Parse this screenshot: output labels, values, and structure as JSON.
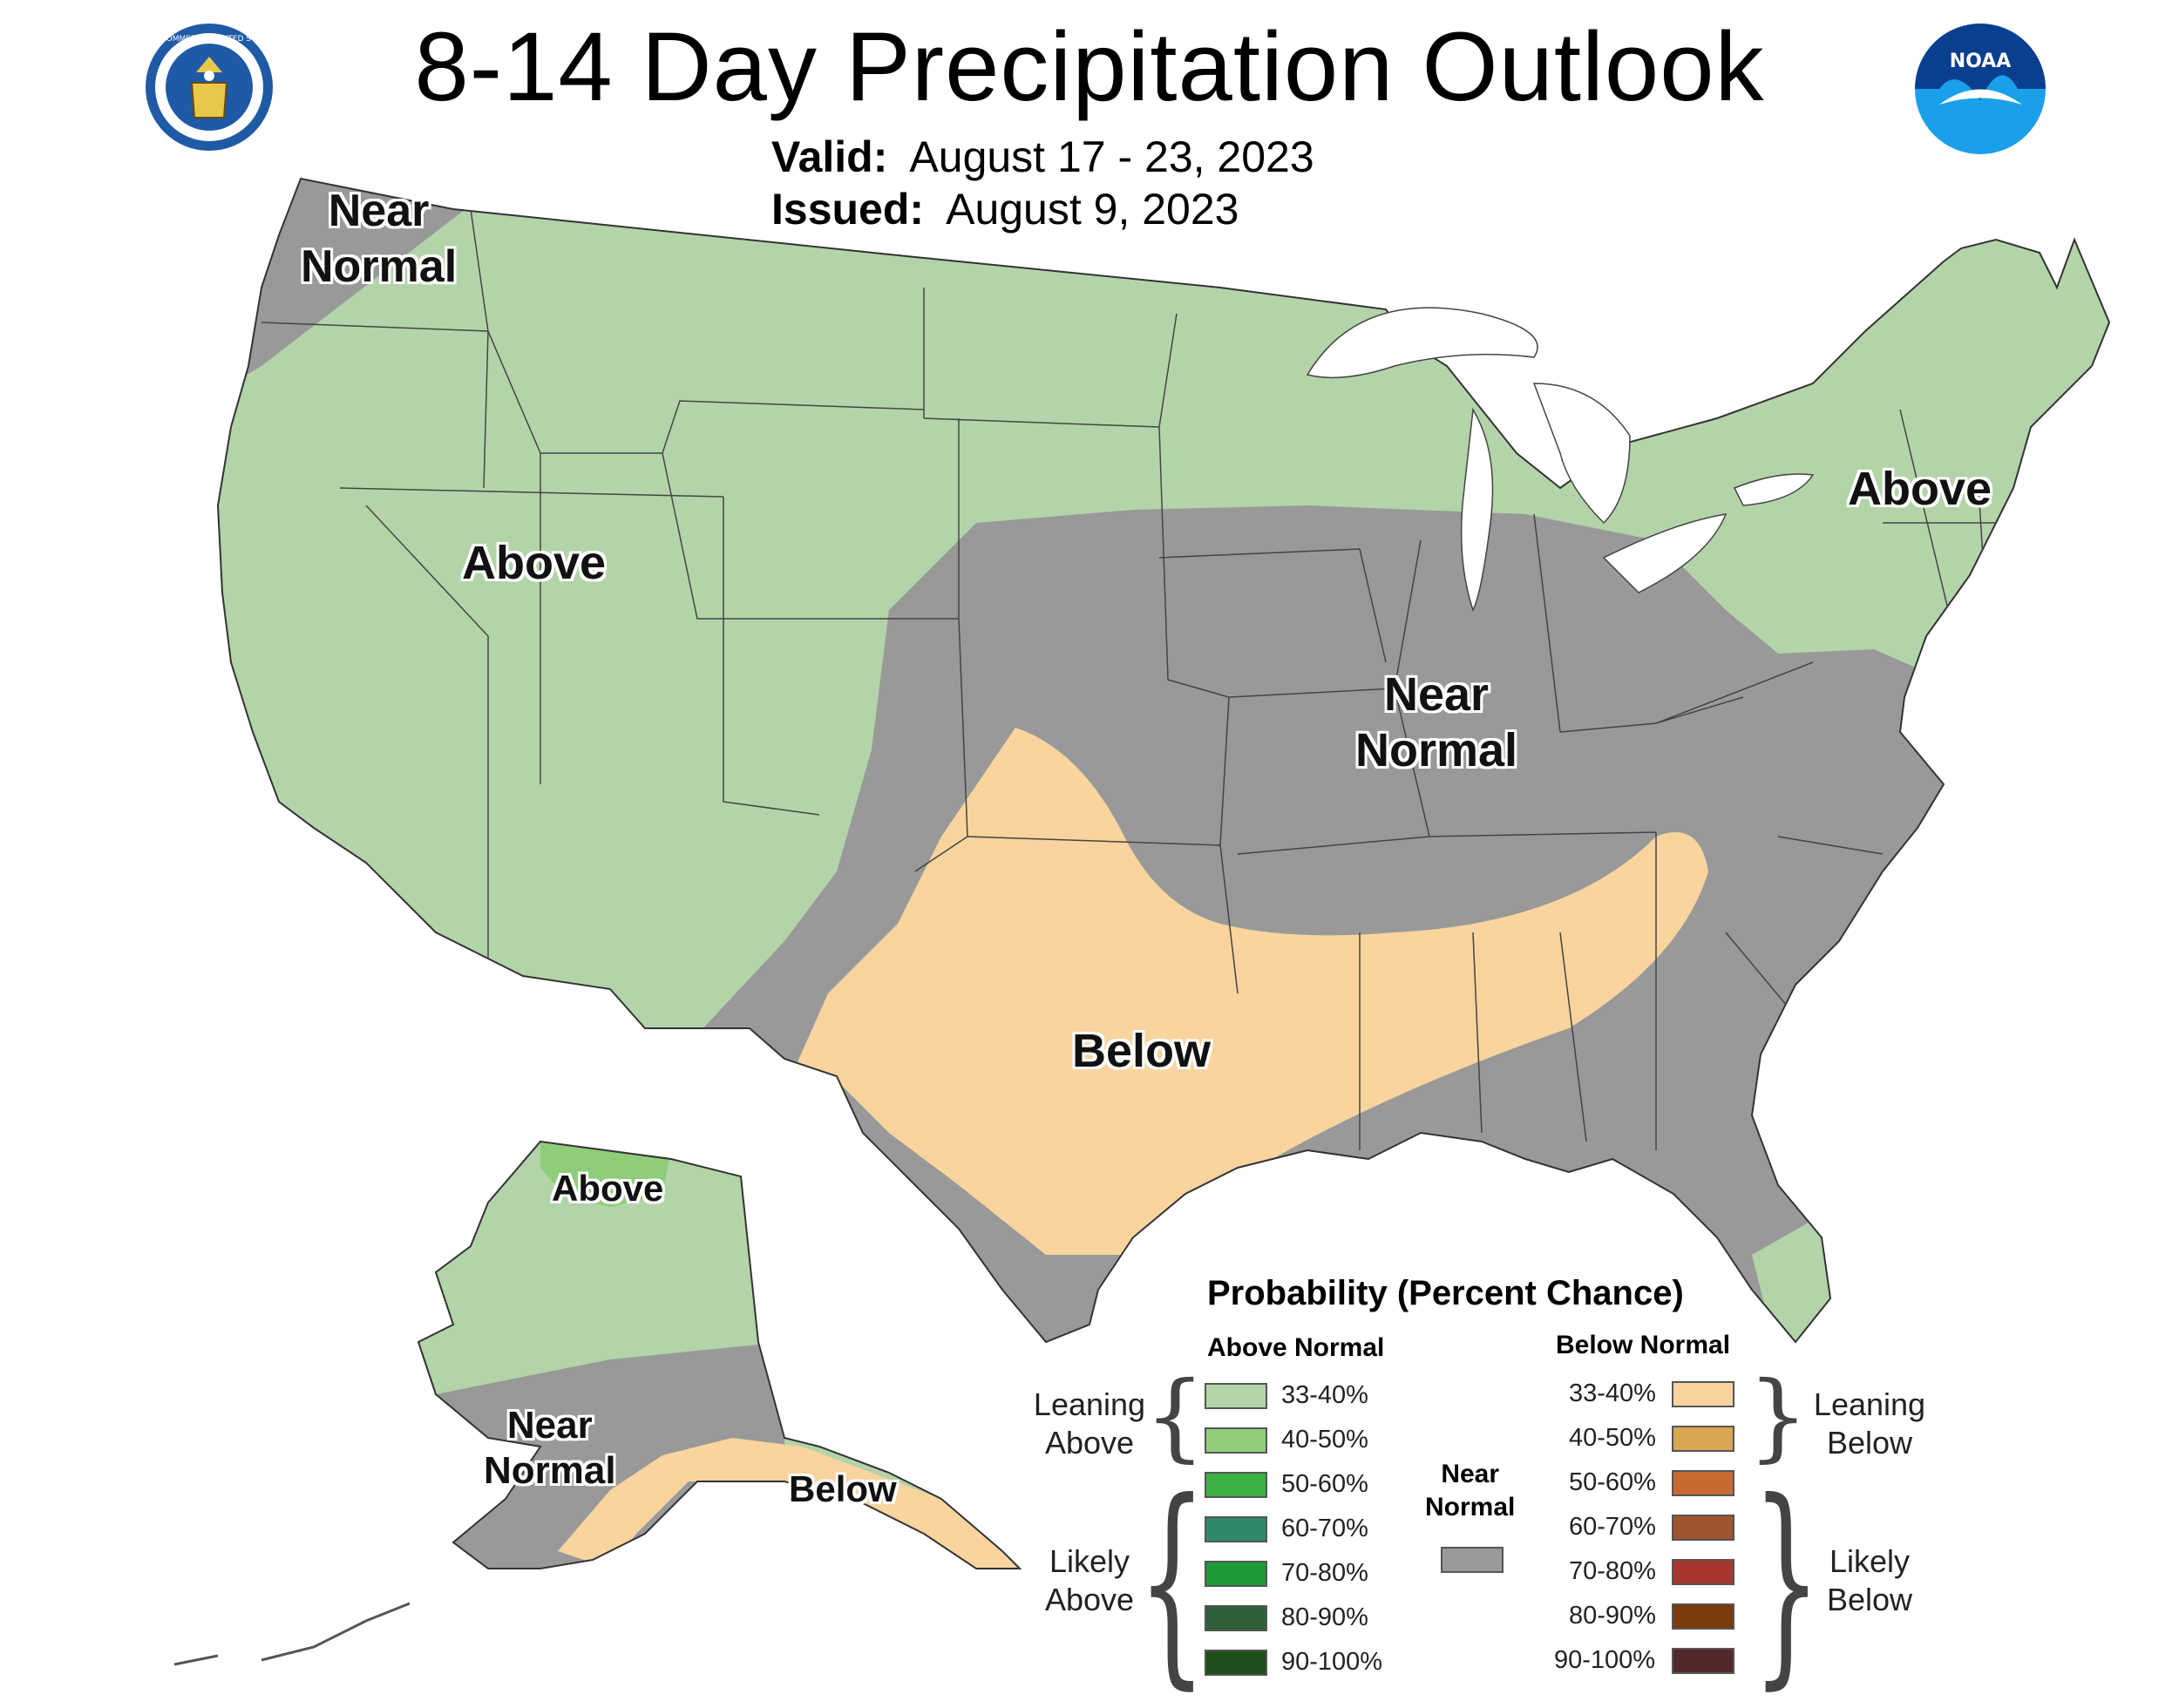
{
  "title": "8-14 Day Precipitation Outlook",
  "valid_label": "Valid:",
  "valid_dates": "August 17 - 23, 2023",
  "issued_label": "Issued:",
  "issued_date": "August 9, 2023",
  "logos": {
    "left": {
      "name": "department-of-commerce-seal",
      "text": "DEPARTMENT OF COMMERCE · UNITED STATES OF AMERICA"
    },
    "right": {
      "name": "noaa-logo",
      "text": "NOAA"
    }
  },
  "colors": {
    "near_normal": "#999999",
    "above_33_40": "#b3d4a8",
    "above_40_50": "#8fcd7b",
    "above_50_60": "#3cb043",
    "above_60_70": "#2f8a6b",
    "above_70_80": "#1d9a3a",
    "above_80_90": "#2e5f38",
    "above_90_100": "#1f4e1a",
    "below_33_40": "#f9d49f",
    "below_40_50": "#d9a653",
    "below_50_60": "#c56b32",
    "below_60_70": "#a0542f",
    "below_70_80": "#a7372e",
    "below_80_90": "#7a3a0b",
    "below_90_100": "#53282a",
    "water": "#ffffff",
    "border": "#333333"
  },
  "region_labels": {
    "pnw": "Near\nNormal",
    "west": "Above",
    "northeast": "Above",
    "midwest": "Near\nNormal",
    "south": "Below",
    "ak_north": "Above",
    "ak_south": "Near\nNormal",
    "ak_southeast": "Below"
  },
  "legend": {
    "title": "Probability (Percent Chance)",
    "above_header": "Above Normal",
    "below_header": "Below Normal",
    "near_header": "Near\nNormal",
    "above_levels": [
      "33-40%",
      "40-50%",
      "50-60%",
      "60-70%",
      "70-80%",
      "80-90%",
      "90-100%"
    ],
    "below_levels": [
      "33-40%",
      "40-50%",
      "50-60%",
      "60-70%",
      "70-80%",
      "80-90%",
      "90-100%"
    ],
    "leaning_above": "Leaning\nAbove",
    "likely_above": "Likely\nAbove",
    "leaning_below": "Leaning\nBelow",
    "likely_below": "Likely\nBelow"
  }
}
